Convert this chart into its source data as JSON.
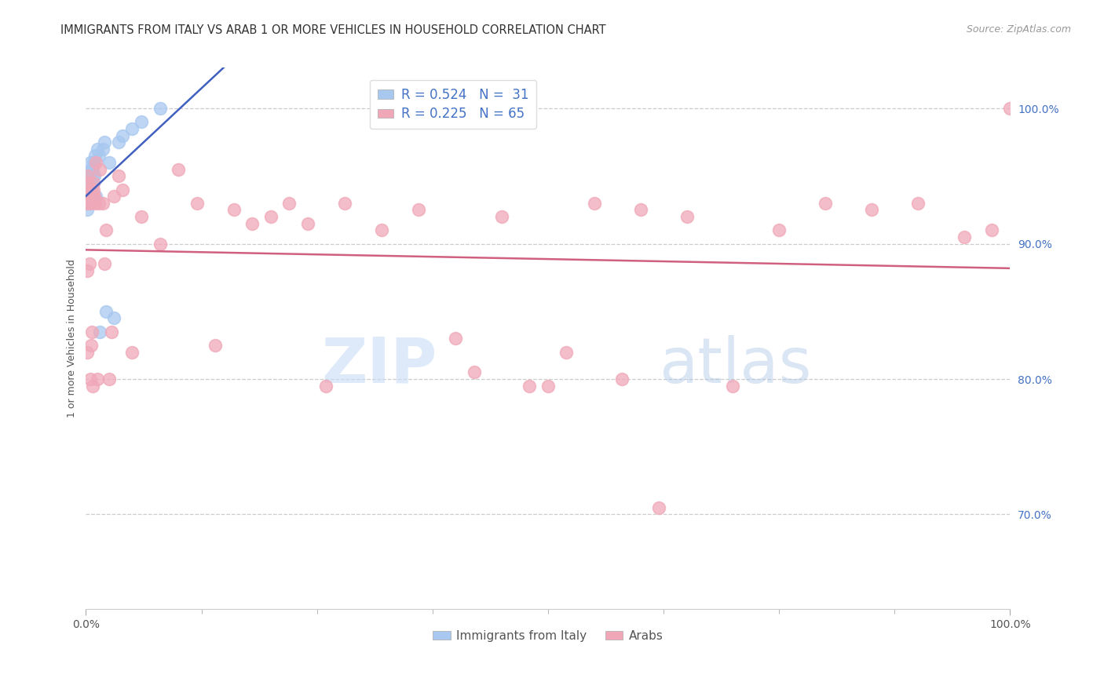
{
  "title": "IMMIGRANTS FROM ITALY VS ARAB 1 OR MORE VEHICLES IN HOUSEHOLD CORRELATION CHART",
  "source": "Source: ZipAtlas.com",
  "ylabel": "1 or more Vehicles in Household",
  "legend_italy_r": "R = 0.524",
  "legend_italy_n": "N =  31",
  "legend_arab_r": "R = 0.225",
  "legend_arab_n": "N = 65",
  "legend_labels": [
    "Immigrants from Italy",
    "Arabs"
  ],
  "italy_color": "#a8c8f0",
  "arab_color": "#f0a8b8",
  "italy_line_color": "#4060c0",
  "arab_line_color": "#d06080",
  "italy_x": [
    0.1,
    0.2,
    0.25,
    0.3,
    0.35,
    0.4,
    0.45,
    0.5,
    0.55,
    0.6,
    0.65,
    0.7,
    0.75,
    0.8,
    0.85,
    0.9,
    1.0,
    1.1,
    1.2,
    1.4,
    1.5,
    1.8,
    2.0,
    2.2,
    2.5,
    3.0,
    3.5,
    4.0,
    5.0,
    6.0,
    8.0
  ],
  "italy_y": [
    92.5,
    93.5,
    94.0,
    94.5,
    93.0,
    95.0,
    94.5,
    96.0,
    94.0,
    95.5,
    94.0,
    95.0,
    95.5,
    94.5,
    96.0,
    95.0,
    96.5,
    93.5,
    97.0,
    96.5,
    83.5,
    97.0,
    97.5,
    85.0,
    96.0,
    84.5,
    97.5,
    98.0,
    98.5,
    99.0,
    100.0
  ],
  "arab_x": [
    0.05,
    0.1,
    0.15,
    0.2,
    0.25,
    0.3,
    0.35,
    0.4,
    0.45,
    0.5,
    0.55,
    0.6,
    0.65,
    0.7,
    0.75,
    0.8,
    0.85,
    0.9,
    1.0,
    1.1,
    1.2,
    1.4,
    1.5,
    1.8,
    2.0,
    2.2,
    2.5,
    2.8,
    3.0,
    3.5,
    4.0,
    5.0,
    6.0,
    8.0,
    10.0,
    12.0,
    14.0,
    16.0,
    18.0,
    20.0,
    22.0,
    24.0,
    26.0,
    28.0,
    32.0,
    36.0,
    40.0,
    45.0,
    50.0,
    55.0,
    60.0,
    65.0,
    70.0,
    75.0,
    80.0,
    85.0,
    90.0,
    95.0,
    98.0,
    100.0,
    42.0,
    48.0,
    52.0,
    58.0,
    62.0
  ],
  "arab_y": [
    93.0,
    88.0,
    82.0,
    94.5,
    95.0,
    93.5,
    94.0,
    88.5,
    93.0,
    80.0,
    82.5,
    94.0,
    83.5,
    93.5,
    79.5,
    94.5,
    94.0,
    93.5,
    93.0,
    96.0,
    80.0,
    93.0,
    95.5,
    93.0,
    88.5,
    91.0,
    80.0,
    83.5,
    93.5,
    95.0,
    94.0,
    82.0,
    92.0,
    90.0,
    95.5,
    93.0,
    82.5,
    92.5,
    91.5,
    92.0,
    93.0,
    91.5,
    79.5,
    93.0,
    91.0,
    92.5,
    83.0,
    92.0,
    79.5,
    93.0,
    92.5,
    92.0,
    79.5,
    91.0,
    93.0,
    92.5,
    93.0,
    90.5,
    91.0,
    100.0,
    80.5,
    79.5,
    82.0,
    80.0,
    70.5
  ],
  "xlim": [
    0,
    100
  ],
  "ylim": [
    63,
    103
  ],
  "yticks": [
    70,
    80,
    90,
    100
  ],
  "grid_color": "#cccccc",
  "background_color": "#ffffff"
}
